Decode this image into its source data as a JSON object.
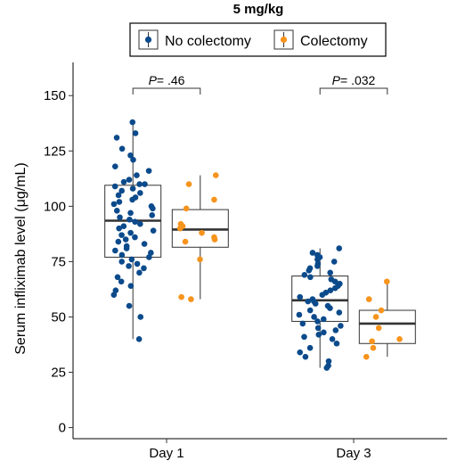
{
  "chart_data": {
    "type": "box",
    "title": "5 mg/kg",
    "ylabel": "Serum infliximab level (μg/mL)",
    "xlabel": "",
    "categories": [
      "Day 1",
      "Day 3"
    ],
    "ylim": [
      -5,
      165
    ],
    "yticks": [
      0,
      25,
      50,
      75,
      100,
      125,
      150
    ],
    "grid": false,
    "legend": {
      "position": "top",
      "entries": [
        "No colectomy",
        "Colectomy"
      ]
    },
    "colors": {
      "No colectomy": "#0b4a8b",
      "Colectomy": "#f7941d"
    },
    "series": [
      {
        "name": "No colectomy",
        "boxes": [
          {
            "category": "Day 1",
            "min": 40,
            "q1": 77,
            "median": 93.5,
            "q3": 109.5,
            "max": 138
          },
          {
            "category": "Day 3",
            "min": 27,
            "q1": 48,
            "median": 57.5,
            "q3": 68.5,
            "max": 81
          }
        ],
        "points": {
          "Day 1": [
            138,
            133,
            131,
            126,
            123,
            121,
            118,
            116,
            114,
            112,
            111,
            110,
            110,
            109,
            108,
            107,
            106,
            105,
            104,
            103,
            102,
            101,
            100,
            99,
            98,
            97,
            96,
            95,
            94,
            93,
            92,
            91,
            90,
            89,
            88,
            87,
            86,
            85,
            84,
            83,
            82,
            81,
            80,
            79,
            78,
            77,
            76,
            75,
            74,
            73,
            72,
            70,
            68,
            66,
            64,
            62,
            60,
            55,
            50,
            40
          ],
          "Day 3": [
            81,
            79,
            78,
            77,
            76,
            75,
            74,
            73,
            72,
            71,
            70,
            69,
            68,
            67,
            66,
            65,
            64,
            63,
            62,
            61,
            60,
            59,
            58,
            57,
            57,
            56,
            55,
            54,
            53,
            52,
            51,
            50,
            49,
            48,
            47,
            46,
            45,
            44,
            43,
            42,
            41,
            40,
            38,
            36,
            34,
            32,
            30,
            28,
            27
          ]
        }
      },
      {
        "name": "Colectomy",
        "boxes": [
          {
            "category": "Day 1",
            "min": 58,
            "q1": 81.5,
            "median": 89.5,
            "q3": 98.5,
            "max": 114
          },
          {
            "category": "Day 3",
            "min": 32,
            "q1": 38,
            "median": 47,
            "q3": 53,
            "max": 66
          }
        ],
        "points": {
          "Day 1": [
            114,
            110,
            103,
            99,
            92,
            91,
            90,
            88,
            86,
            85,
            84,
            76,
            59,
            58
          ],
          "Day 3": [
            66,
            58,
            53,
            50,
            45,
            40,
            39,
            36,
            32
          ]
        }
      }
    ],
    "annotations": [
      {
        "category": "Day 1",
        "label_p": "P",
        "label_value": "= .46"
      },
      {
        "category": "Day 3",
        "label_p": "P",
        "label_value": "= .032"
      }
    ]
  }
}
